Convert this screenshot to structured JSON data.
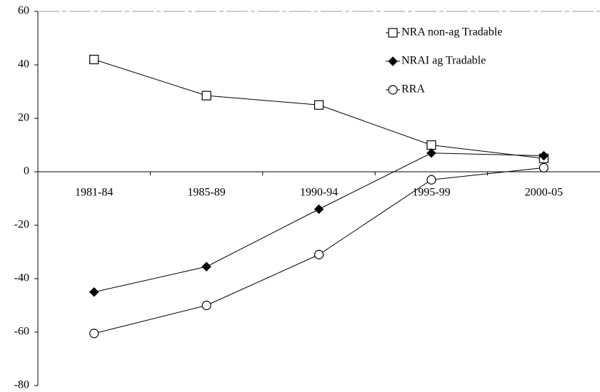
{
  "chart_data": {
    "type": "line",
    "categories": [
      "1981-84",
      "1985-89",
      "1990-94",
      "1995-99",
      "2000-05"
    ],
    "series": [
      {
        "name": "NRA non-ag Tradable",
        "color": "#000000",
        "marker": "square",
        "values": [
          42,
          28.5,
          25,
          10,
          5
        ]
      },
      {
        "name": "NRAI ag Tradable",
        "color": "#000000",
        "marker": "diamond",
        "values": [
          -45,
          -35.5,
          -14,
          7,
          6
        ]
      },
      {
        "name": "RRA",
        "color": "#000000",
        "marker": "circle",
        "values": [
          -60.5,
          -50,
          -31,
          -3,
          1.5
        ]
      }
    ],
    "ylim": [
      -80,
      60
    ],
    "yticks": [
      -80,
      -60,
      -40,
      -20,
      0,
      20,
      40,
      60
    ],
    "legend": "top-right"
  }
}
